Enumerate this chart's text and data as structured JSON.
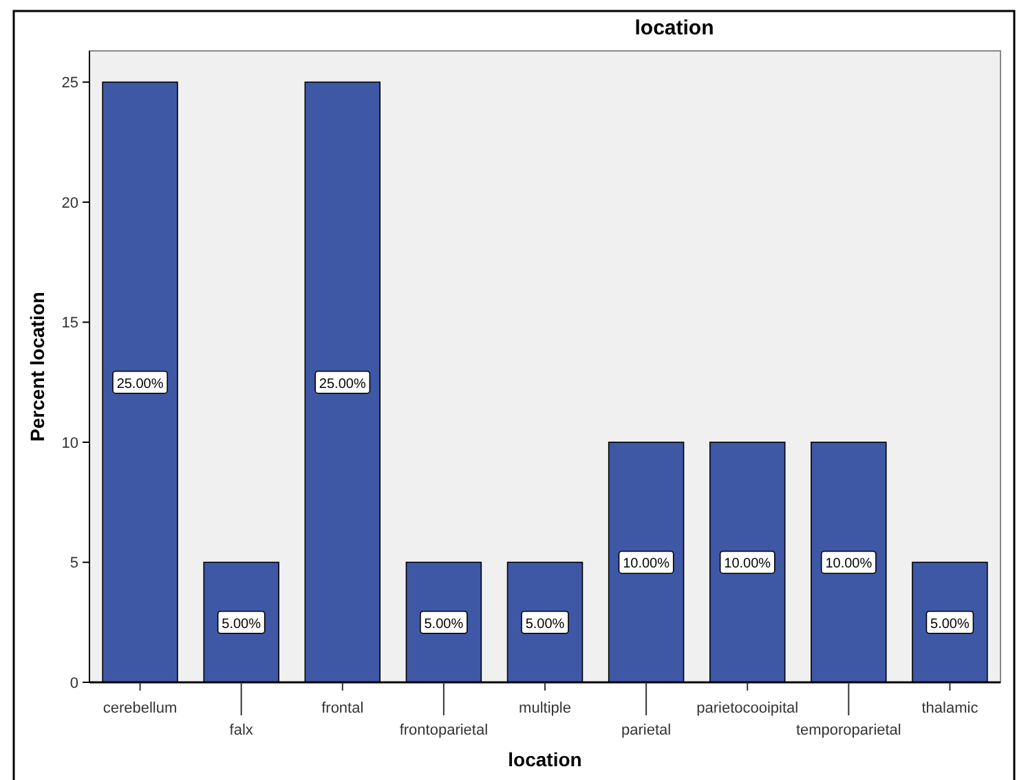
{
  "chart_data": {
    "type": "bar",
    "title": "location",
    "xlabel": "location",
    "ylabel": "Percent location",
    "categories": [
      "cerebellum",
      "falx",
      "frontal",
      "frontoparietal",
      "multiple",
      "parietal",
      "parietocooipital",
      "temporoparietal",
      "thalamic"
    ],
    "values": [
      25,
      5,
      25,
      5,
      5,
      10,
      10,
      10,
      5
    ],
    "value_labels": [
      "25.00%",
      "5.00%",
      "25.00%",
      "5.00%",
      "5.00%",
      "10.00%",
      "10.00%",
      "10.00%",
      "5.00%"
    ],
    "color": "#3e58a6",
    "ylim": [
      0,
      26.3
    ],
    "yticks": [
      0,
      5,
      10,
      15,
      20,
      25
    ],
    "grid": false
  }
}
